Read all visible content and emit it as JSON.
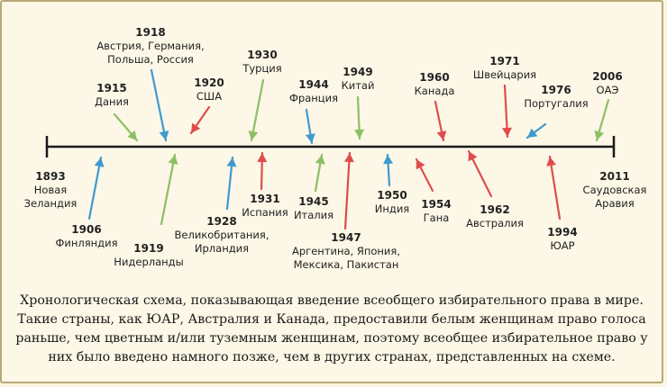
{
  "colors": {
    "green": "#8cc063",
    "blue": "#3f9ad0",
    "red": "#df4d4b",
    "line": "#1a1a1a"
  },
  "timeline": {
    "start": {
      "year": "1893",
      "label": "Новая\nЗеландия"
    },
    "end": {
      "year": "2011",
      "label": "Саудовская\nАравия"
    },
    "above": [
      {
        "year": "1915",
        "label": "Дания",
        "color": "green"
      },
      {
        "year": "1918",
        "label": "Австрия, Германия,\nПольша, Россия",
        "color": "blue"
      },
      {
        "year": "1920",
        "label": "США",
        "color": "red"
      },
      {
        "year": "1930",
        "label": "Турция",
        "color": "green"
      },
      {
        "year": "1944",
        "label": "Франция",
        "color": "blue"
      },
      {
        "year": "1949",
        "label": "Китай",
        "color": "green"
      },
      {
        "year": "1960",
        "label": "Канада",
        "color": "red"
      },
      {
        "year": "1971",
        "label": "Швейцария",
        "color": "red"
      },
      {
        "year": "1976",
        "label": "Португалия",
        "color": "blue"
      },
      {
        "year": "2006",
        "label": "ОАЭ",
        "color": "green"
      }
    ],
    "below": [
      {
        "year": "1906",
        "label": "Финляндия",
        "color": "blue"
      },
      {
        "year": "1919",
        "label": "Нидерланды",
        "color": "green"
      },
      {
        "year": "1928",
        "label": "Великобритания,\nИрландия",
        "color": "blue"
      },
      {
        "year": "1931",
        "label": "Испания",
        "color": "red"
      },
      {
        "year": "1945",
        "label": "Италия",
        "color": "green"
      },
      {
        "year": "1947",
        "label": "Аргентина, Япония,\nМексика, Пакистан",
        "color": "red"
      },
      {
        "year": "1950",
        "label": "Индия",
        "color": "blue"
      },
      {
        "year": "1954",
        "label": "Гана",
        "color": "red"
      },
      {
        "year": "1962",
        "label": "Австралия",
        "color": "red"
      },
      {
        "year": "1994",
        "label": "ЮАР",
        "color": "red"
      }
    ]
  },
  "caption": "Хронологическая схема, показывающая введение всеобщего избирательного права в мире. Такие страны, как ЮАР, Австралия и Канада, предоставили белым женщинам право голоса раньше, чем цветным и/или туземным женщинам, поэтому всеобщее избирательное право у них было введено намного позже, чем в других странах, представленных на схеме."
}
